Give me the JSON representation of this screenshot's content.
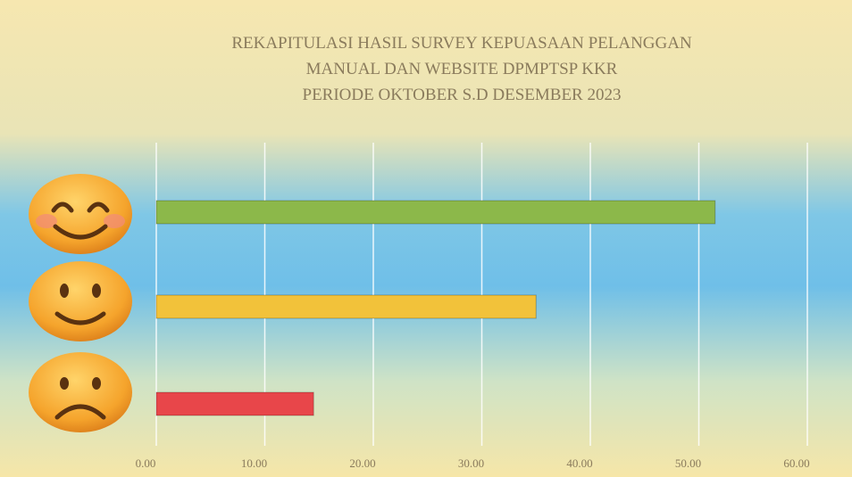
{
  "chart_data": {
    "type": "hbar",
    "title": [
      "REKAPITULASI HASIL SURVEY KEPUASAAN PELANGGAN",
      "MANUAL DAN WEBSITE DPMPTSP KKR",
      "PERIODE OKTOBER S.D DESEMBER 2023"
    ],
    "categories": [
      null,
      null,
      null
    ],
    "values": [
      51.5,
      35,
      14.5
    ],
    "colors": [
      "#8cb84a",
      "#f2c23a",
      "#e8464a"
    ],
    "xlim": [
      0,
      62
    ],
    "xticks": [
      {
        "value": 0,
        "label": "0.00"
      },
      {
        "value": 10,
        "label": "10.00"
      },
      {
        "value": 20,
        "label": "20.00"
      },
      {
        "value": 30,
        "label": "30.00"
      },
      {
        "value": 40,
        "label": "40.00"
      },
      {
        "value": 50,
        "label": "50.00"
      },
      {
        "value": 60,
        "label": "60.00"
      }
    ],
    "grid": true
  }
}
